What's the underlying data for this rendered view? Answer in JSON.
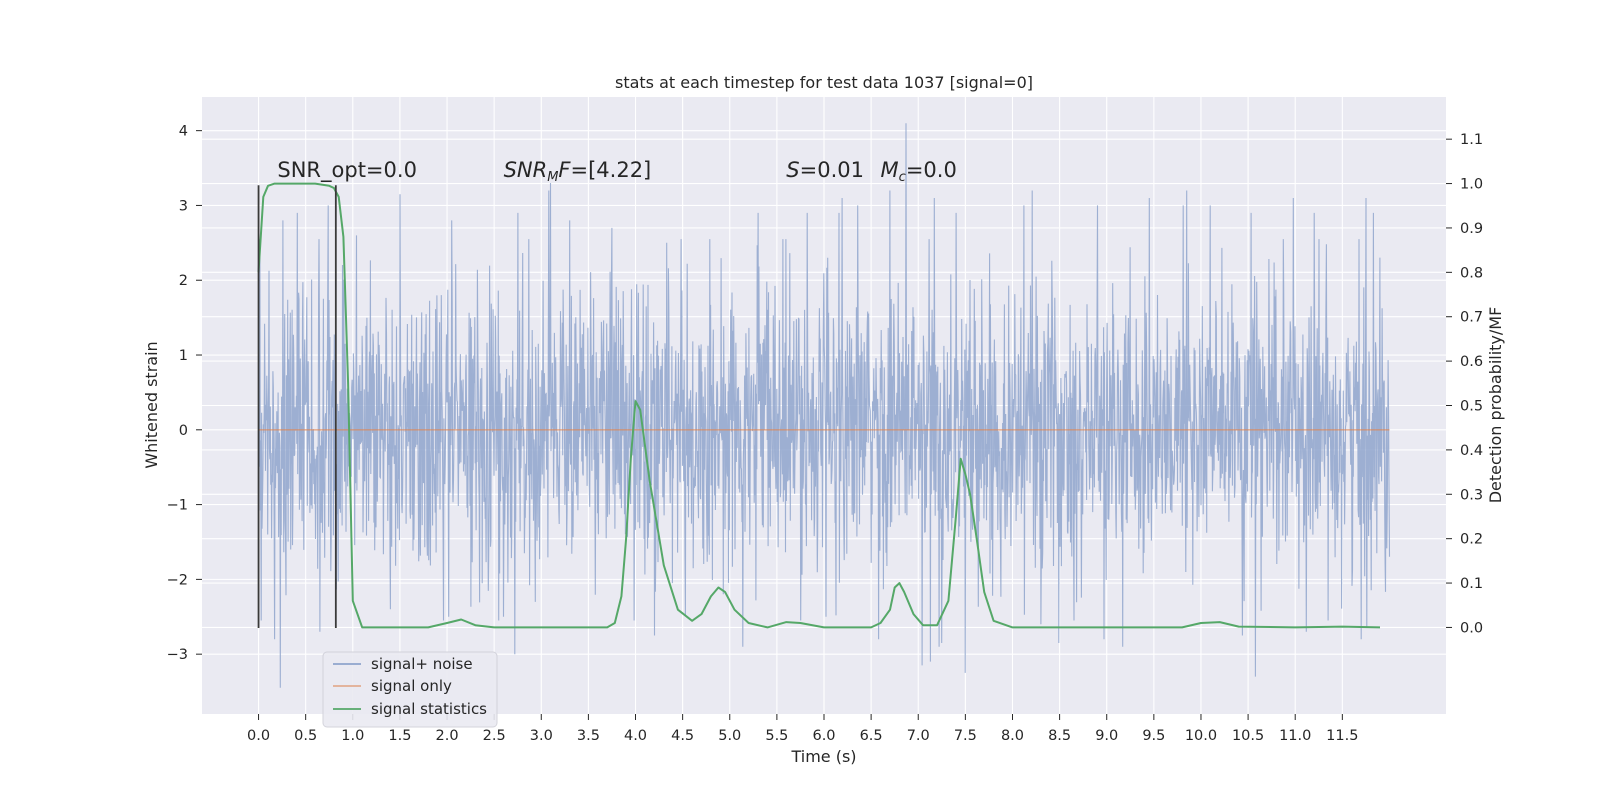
{
  "chart_data": {
    "type": "line",
    "title": "stats at each timestep for test data 1037 [signal=0]",
    "xlabel": "Time (s)",
    "ylabel": "Whitened strain",
    "y2label": "Detection probability/MF",
    "xlim": [
      -0.6,
      12.6
    ],
    "ylim": [
      -3.8,
      4.45
    ],
    "y2lim": [
      -0.195,
      1.195
    ],
    "x_ticks": [
      0.0,
      0.5,
      1.0,
      1.5,
      2.0,
      2.5,
      3.0,
      3.5,
      4.0,
      4.5,
      5.0,
      5.5,
      6.0,
      6.5,
      7.0,
      7.5,
      8.0,
      8.5,
      9.0,
      9.5,
      10.0,
      10.5,
      11.0,
      11.5
    ],
    "x_tick_labels": [
      "0.0",
      "0.5",
      "1.0",
      "1.5",
      "2.0",
      "2.5",
      "3.0",
      "3.5",
      "4.0",
      "4.5",
      "5.0",
      "5.5",
      "6.0",
      "6.5",
      "7.0",
      "7.5",
      "8.0",
      "8.5",
      "9.0",
      "9.5",
      "10.0",
      "10.5",
      "11.0",
      "11.5"
    ],
    "y_ticks": [
      -3,
      -2,
      -1,
      0,
      1,
      2,
      3,
      4
    ],
    "y_tick_labels": [
      "−3",
      "−2",
      "−1",
      "0",
      "1",
      "2",
      "3",
      "4"
    ],
    "y2_ticks": [
      0.0,
      0.1,
      0.2,
      0.3,
      0.4,
      0.5,
      0.6,
      0.7,
      0.8,
      0.9,
      1.0,
      1.1
    ],
    "y2_tick_labels": [
      "0.0",
      "0.1",
      "0.2",
      "0.3",
      "0.4",
      "0.5",
      "0.6",
      "0.7",
      "0.8",
      "0.9",
      "1.0",
      "1.1"
    ],
    "grid": true,
    "legend_position": "lower-left",
    "colors": {
      "background": "#eaeaf2",
      "grid": "#ffffff",
      "noise": "#8fa4cc",
      "signal": "#dd8452",
      "stats": "#55a868",
      "marker": "#3a3a3a"
    },
    "annotations": [
      {
        "html": "SNR_opt=0.0",
        "x": 0.2,
        "y": 3.38
      },
      {
        "html": "<tspan font-style='italic'>SNR</tspan><tspan font-style='italic' font-size='13' dy='4'>M</tspan><tspan font-style='italic' dy='-4'>F</tspan>=[4.22]",
        "x": 2.6,
        "y": 3.38
      },
      {
        "html": "<tspan font-style='italic'>S</tspan>=0.01",
        "x": 5.6,
        "y": 3.38
      },
      {
        "html": "<tspan font-style='italic'>M</tspan><tspan font-style='italic' font-size='13' dy='4'>c</tspan><tspan dy='-4'>=0.0</tspan>",
        "x": 6.6,
        "y": 3.38
      }
    ],
    "vertical_markers": [
      {
        "x": 0.0,
        "y": [
          -2.65,
          3.27
        ]
      },
      {
        "x": 0.82,
        "y": [
          -2.65,
          3.27
        ]
      }
    ],
    "series": [
      {
        "name": "signal+ noise",
        "axis": "left",
        "kind": "noise",
        "x_range": [
          0.0,
          12.0
        ],
        "envelope_sigma": 1.0,
        "peaks": [
          [
            0.26,
            2.8
          ],
          [
            0.41,
            2.9
          ],
          [
            0.74,
            3.0
          ],
          [
            1.04,
            2.6
          ],
          [
            1.5,
            3.15
          ],
          [
            2.05,
            2.8
          ],
          [
            2.75,
            2.9
          ],
          [
            3.08,
            3.2
          ],
          [
            3.1,
            3.3
          ],
          [
            3.3,
            2.8
          ],
          [
            3.75,
            2.7
          ],
          [
            4.33,
            2.5
          ],
          [
            4.79,
            2.55
          ],
          [
            5.3,
            2.9
          ],
          [
            5.82,
            2.9
          ],
          [
            6.16,
            2.9
          ],
          [
            6.19,
            3.1
          ],
          [
            6.36,
            3.0
          ],
          [
            6.58,
            3.0
          ],
          [
            6.7,
            3.2
          ],
          [
            6.87,
            4.1
          ],
          [
            7.17,
            3.1
          ],
          [
            7.4,
            2.9
          ],
          [
            8.12,
            3.0
          ],
          [
            8.21,
            3.2
          ],
          [
            8.9,
            3.0
          ],
          [
            9.45,
            3.1
          ],
          [
            9.81,
            3.0
          ],
          [
            9.85,
            3.2
          ],
          [
            10.1,
            3.0
          ],
          [
            10.53,
            2.9
          ],
          [
            10.98,
            3.1
          ],
          [
            11.2,
            2.9
          ],
          [
            11.75,
            3.1
          ],
          [
            11.83,
            2.9
          ]
        ],
        "troughs": [
          [
            0.23,
            -3.45
          ],
          [
            0.17,
            -2.8
          ],
          [
            0.65,
            -2.7
          ],
          [
            1.4,
            -2.4
          ],
          [
            2.02,
            -2.5
          ],
          [
            2.6,
            -2.5
          ],
          [
            2.72,
            -3.0
          ],
          [
            4.2,
            -2.75
          ],
          [
            5.14,
            -2.9
          ],
          [
            6.02,
            -2.5
          ],
          [
            6.58,
            -2.8
          ],
          [
            7.04,
            -3.15
          ],
          [
            7.13,
            -3.1
          ],
          [
            7.22,
            -2.9
          ],
          [
            7.25,
            -2.85
          ],
          [
            7.5,
            -3.25
          ],
          [
            8.3,
            -2.6
          ],
          [
            8.49,
            -2.85
          ],
          [
            8.97,
            -2.8
          ],
          [
            9.17,
            -2.9
          ],
          [
            10.44,
            -2.75
          ],
          [
            10.58,
            -3.3
          ],
          [
            11.12,
            -2.7
          ],
          [
            11.7,
            -2.8
          ],
          [
            11.76,
            -2.65
          ]
        ]
      },
      {
        "name": "signal only",
        "axis": "left",
        "kind": "line",
        "x": [
          0.0,
          12.0
        ],
        "y": [
          0.0,
          0.0
        ]
      },
      {
        "name": "signal statistics",
        "axis": "right",
        "kind": "line",
        "x": [
          0.0,
          0.05,
          0.1,
          0.17,
          0.3,
          0.6,
          0.75,
          0.8,
          0.85,
          0.9,
          0.95,
          1.0,
          1.1,
          1.5,
          1.8,
          2.0,
          2.15,
          2.3,
          2.5,
          3.5,
          3.7,
          3.78,
          3.85,
          3.9,
          3.95,
          4.0,
          4.05,
          4.15,
          4.3,
          4.45,
          4.6,
          4.7,
          4.8,
          4.88,
          4.95,
          5.05,
          5.2,
          5.4,
          5.6,
          5.75,
          6.0,
          6.5,
          6.6,
          6.7,
          6.75,
          6.8,
          6.85,
          6.95,
          7.05,
          7.2,
          7.32,
          7.4,
          7.45,
          7.5,
          7.55,
          7.62,
          7.7,
          7.8,
          8.0,
          9.8,
          10.0,
          10.2,
          10.4,
          11.0,
          11.5,
          11.9
        ],
        "y": [
          0.8,
          0.97,
          0.995,
          1.0,
          1.0,
          1.0,
          0.995,
          0.99,
          0.97,
          0.88,
          0.55,
          0.06,
          0.0,
          0.0,
          0.0,
          0.01,
          0.018,
          0.005,
          0.0,
          0.0,
          0.0,
          0.01,
          0.07,
          0.2,
          0.38,
          0.51,
          0.49,
          0.33,
          0.14,
          0.04,
          0.015,
          0.03,
          0.07,
          0.09,
          0.08,
          0.04,
          0.01,
          0.0,
          0.012,
          0.01,
          0.0,
          0.0,
          0.01,
          0.04,
          0.09,
          0.1,
          0.08,
          0.03,
          0.005,
          0.005,
          0.06,
          0.25,
          0.38,
          0.345,
          0.3,
          0.2,
          0.08,
          0.015,
          0.0,
          0.0,
          0.01,
          0.012,
          0.002,
          0.0,
          0.002,
          0.0
        ]
      }
    ]
  }
}
